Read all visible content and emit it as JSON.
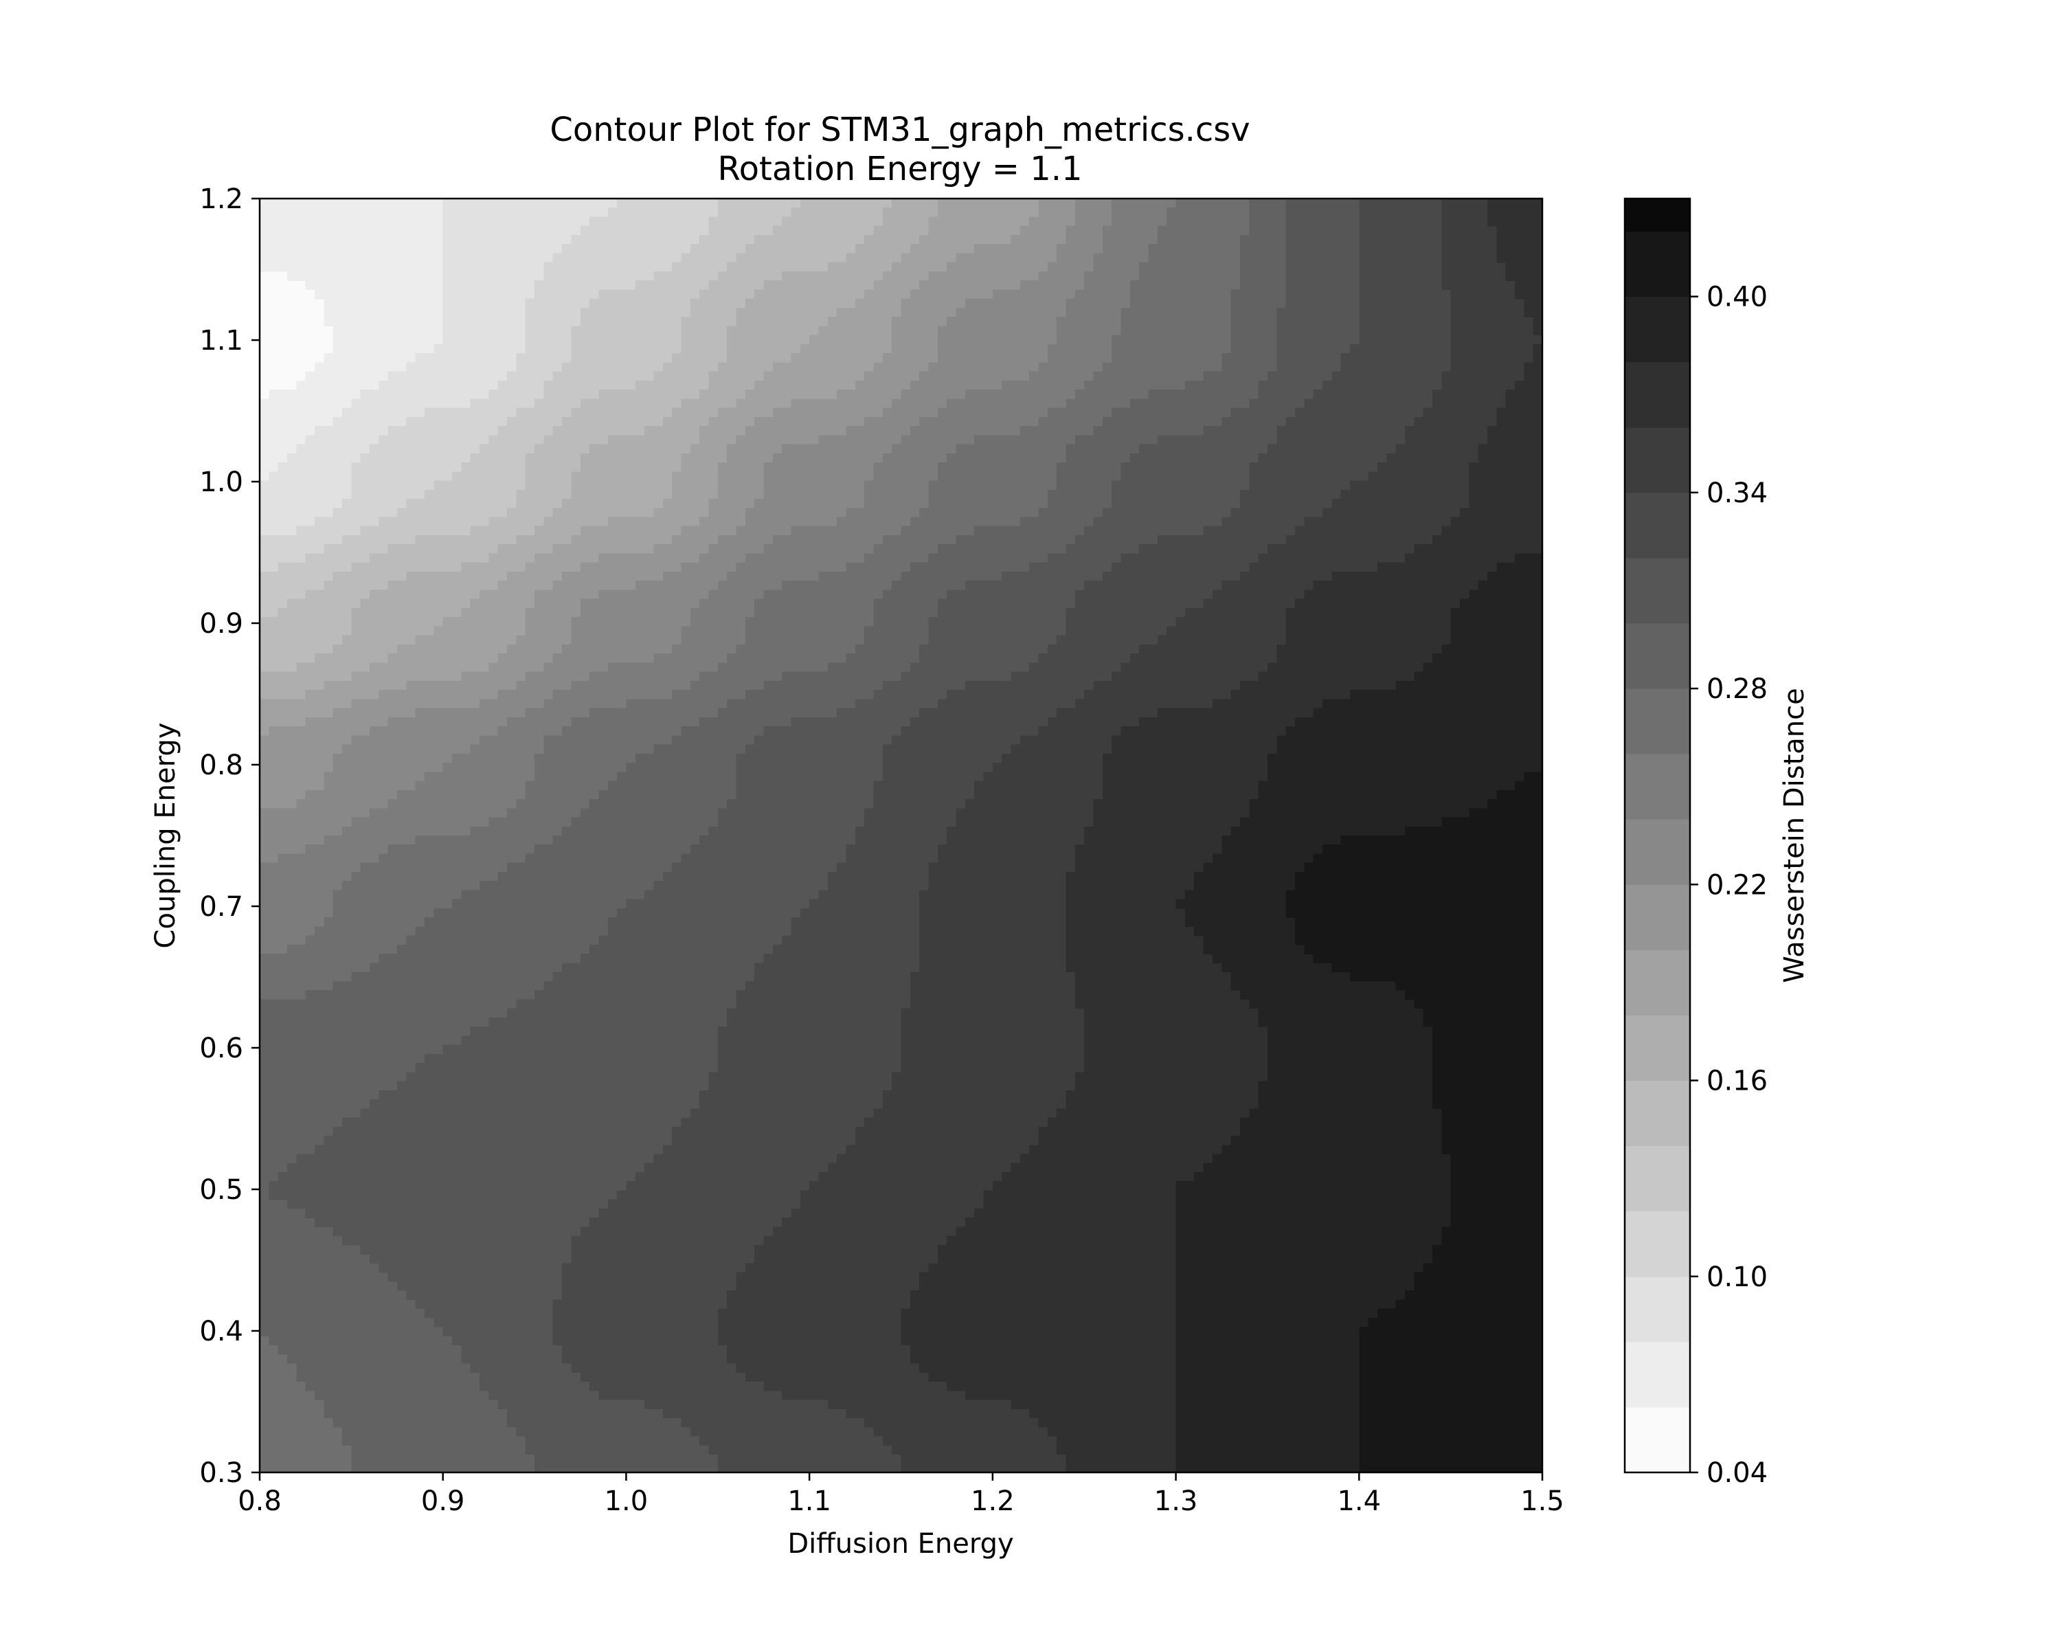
{
  "chart_data": {
    "type": "heatmap",
    "subtype": "filled-contour",
    "title": "Contour Plot for STM31_graph_metrics.csv",
    "subtitle": "Rotation Energy = 1.1",
    "xlabel": "Diffusion Energy",
    "ylabel": "Coupling Energy",
    "xlim": [
      0.8,
      1.5
    ],
    "ylim": [
      0.3,
      1.2
    ],
    "x_ticks": [
      "0.8",
      "0.9",
      "1.0",
      "1.1",
      "1.2",
      "1.3",
      "1.4",
      "1.5"
    ],
    "y_ticks": [
      "0.3",
      "0.4",
      "0.5",
      "0.6",
      "0.7",
      "0.8",
      "0.9",
      "1.0",
      "1.1",
      "1.2"
    ],
    "colormap": "Greys",
    "colorbar": {
      "label": "Wasserstein Distance",
      "range": [
        0.04,
        0.43
      ],
      "ticks": [
        "0.04",
        "0.10",
        "0.16",
        "0.22",
        "0.28",
        "0.34",
        "0.40"
      ],
      "levels": [
        0.04,
        0.06,
        0.08,
        0.1,
        0.12,
        0.14,
        0.16,
        0.18,
        0.2,
        0.22,
        0.24,
        0.26,
        0.28,
        0.3,
        0.32,
        0.34,
        0.36,
        0.38,
        0.4,
        0.42,
        0.44
      ]
    },
    "grid": false,
    "legend": "none",
    "z_x": [
      0.8,
      0.9,
      1.0,
      1.1,
      1.2,
      1.3,
      1.4,
      1.5
    ],
    "z_y": [
      0.3,
      0.4,
      0.5,
      0.6,
      0.7,
      0.8,
      0.9,
      1.0,
      1.1,
      1.2
    ],
    "z": [
      [
        0.27,
        0.29,
        0.31,
        0.33,
        0.35,
        0.38,
        0.4,
        0.41
      ],
      [
        0.28,
        0.3,
        0.33,
        0.35,
        0.37,
        0.38,
        0.4,
        0.41
      ],
      [
        0.3,
        0.31,
        0.32,
        0.34,
        0.36,
        0.38,
        0.39,
        0.41
      ],
      [
        0.29,
        0.3,
        0.31,
        0.33,
        0.35,
        0.37,
        0.39,
        0.42
      ],
      [
        0.25,
        0.28,
        0.3,
        0.32,
        0.35,
        0.38,
        0.41,
        0.41
      ],
      [
        0.21,
        0.24,
        0.28,
        0.31,
        0.34,
        0.37,
        0.39,
        0.4
      ],
      [
        0.14,
        0.18,
        0.23,
        0.27,
        0.31,
        0.34,
        0.37,
        0.39
      ],
      [
        0.08,
        0.12,
        0.17,
        0.23,
        0.27,
        0.31,
        0.34,
        0.37
      ],
      [
        0.05,
        0.08,
        0.13,
        0.18,
        0.23,
        0.27,
        0.32,
        0.36
      ],
      [
        0.07,
        0.08,
        0.1,
        0.14,
        0.19,
        0.26,
        0.32,
        0.37
      ]
    ]
  }
}
